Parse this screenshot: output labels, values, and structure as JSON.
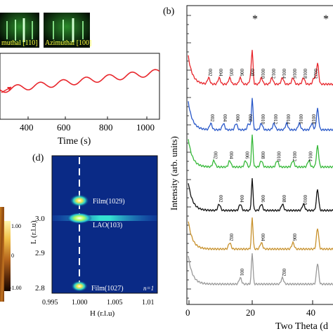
{
  "panel_a": {
    "rheed_left_label": "muthal [110]",
    "rheed_right_label": "Azimuthal [100]",
    "xlabel": "Time (s)",
    "xticks": [
      "400",
      "600",
      "800",
      "1000"
    ]
  },
  "panel_afm": {
    "scale_max": "1.00",
    "scale_mid": "0",
    "scale_min": "-1.00"
  },
  "panel_d": {
    "letter": "(d)",
    "ylabel": "L (r.l.u)",
    "xlabel": "H (r.l.u)",
    "yticks": [
      "3.0",
      "2.9",
      "2.8"
    ],
    "xticks": [
      "0.995",
      "1.000",
      "1.005",
      "1.01"
    ],
    "labels": {
      "film_top": "Film(1029)",
      "substrate": "LAO(103)",
      "film_bottom": "Film(1027)",
      "n_label": "n=1"
    }
  },
  "panel_b": {
    "letter": "(b)",
    "ylabel": "Intensity (arb. units)",
    "xlabel": "Two Theta (d",
    "xticks": [
      "0",
      "20",
      "40"
    ],
    "asterisk": "*",
    "colors": {
      "red": "#e8262c",
      "blue": "#2a59c9",
      "green": "#37b93a",
      "black": "#111111",
      "gold": "#c8922e",
      "gray": "#9a9a9a"
    },
    "curves": [
      {
        "color": "red",
        "peaks": [
          "002",
          "004",
          "005",
          "006",
          "008",
          "0010",
          "0012",
          "0014",
          "0016",
          "0018",
          "0022"
        ]
      },
      {
        "color": "blue",
        "peaks": [
          "002",
          "004",
          "006",
          "008",
          "0010",
          "0012",
          "0014",
          "0016",
          "0018"
        ]
      },
      {
        "color": "green",
        "peaks": [
          "002",
          "004",
          "006",
          "008",
          "0010",
          "0012",
          "0014"
        ]
      },
      {
        "color": "black",
        "peaks": [
          "002",
          "004",
          "006",
          "008",
          "0010"
        ]
      },
      {
        "color": "gold",
        "peaks": [
          "002",
          "004",
          "006"
        ]
      },
      {
        "color": "gray",
        "peaks": [
          "001",
          "002"
        ]
      }
    ]
  }
}
